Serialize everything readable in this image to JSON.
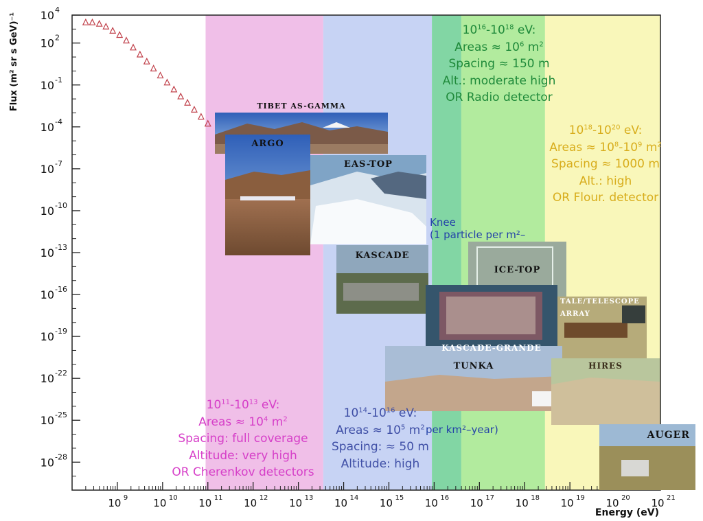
{
  "chart_data": {
    "type": "scatter",
    "xlabel": "Energy (eV)",
    "ylabel": "Flux (m² sr s GeV)⁻¹",
    "x_scale": "log",
    "y_scale": "log",
    "xlim": [
      100000000.0,
      1e+21
    ],
    "ylim": [
      1e-30,
      10000.0
    ],
    "x_ticks": [
      {
        "e": 9,
        "label": "10"
      },
      {
        "e": 10,
        "label": "10"
      },
      {
        "e": 11,
        "label": "10"
      },
      {
        "e": 12,
        "label": "10"
      },
      {
        "e": 13,
        "label": "10"
      },
      {
        "e": 14,
        "label": "10"
      },
      {
        "e": 15,
        "label": "10"
      },
      {
        "e": 16,
        "label": "10"
      },
      {
        "e": 17,
        "label": "10"
      },
      {
        "e": 18,
        "label": "10"
      },
      {
        "e": 19,
        "label": "10"
      },
      {
        "e": 20,
        "label": "10"
      },
      {
        "e": 21,
        "label": "10"
      }
    ],
    "y_ticks": [
      {
        "e": 4,
        "label": "10"
      },
      {
        "e": 2,
        "label": "10"
      },
      {
        "e": -1,
        "label": "10"
      },
      {
        "e": -4,
        "label": "10"
      },
      {
        "e": -7,
        "label": "10"
      },
      {
        "e": -10,
        "label": "10"
      },
      {
        "e": -13,
        "label": "10"
      },
      {
        "e": -16,
        "label": "10"
      },
      {
        "e": -19,
        "label": "10"
      },
      {
        "e": -22,
        "label": "10"
      },
      {
        "e": -25,
        "label": "10"
      },
      {
        "e": -28,
        "label": "10"
      }
    ],
    "series": [
      {
        "marker": "open-triangle",
        "color": "#c0404a",
        "points": [
          [
            200000000.0,
            3162.3
          ],
          [
            280000000.0,
            3162.3
          ],
          [
            400000000.0,
            2511.9
          ],
          [
            560000000.0,
            1584.9
          ],
          [
            790000000.0,
            794.3
          ],
          [
            1120000000.0,
            398.1
          ],
          [
            1580000000.0,
            158.5
          ],
          [
            2240000000.0,
            50.1
          ],
          [
            3160000000.0,
            15.8
          ],
          [
            4470000000.0,
            5.0
          ],
          [
            6310000000.0,
            1.58
          ],
          [
            8910000000.0,
            0.5
          ],
          [
            12600000000.0,
            0.158
          ],
          [
            17800000000.0,
            0.05
          ],
          [
            25100000000.0,
            0.0158
          ],
          [
            35500000000.0,
            0.0056
          ],
          [
            50100000000.0,
            0.00178
          ],
          [
            70800000000.0,
            0.00056
          ],
          [
            100000000000.0,
            0.000178
          ],
          [
            200000000000.0,
            2.5e-05
          ],
          [
            316000000000.0,
            7.9e-06
          ]
        ]
      }
    ],
    "annotations": [
      "Knee",
      "(1 particle per m²–",
      "per km²–year)"
    ],
    "grid": false
  },
  "bands": [
    {
      "id": "band-1011-1013",
      "from": 10.95,
      "to": 13.55,
      "color": "#f0bfe8"
    },
    {
      "id": "band-1014-1016",
      "from": 13.55,
      "to": 15.95,
      "color": "#c7d3f4"
    },
    {
      "id": "band-1016-1017",
      "from": 15.95,
      "to": 16.6,
      "color": "#82d6a4"
    },
    {
      "id": "band-1017-1018",
      "from": 16.6,
      "to": 18.45,
      "color": "#b2eb9e"
    },
    {
      "id": "band-1018-1020",
      "from": 18.45,
      "to": 21.0,
      "color": "#f9f7ba"
    }
  ],
  "experiments": [
    {
      "id": "tibet",
      "label": "TIBET AS-GAMMA"
    },
    {
      "id": "argo",
      "label": "ARGO"
    },
    {
      "id": "eastop",
      "label": "EAS-TOP"
    },
    {
      "id": "kascade",
      "label": "KASCADE"
    },
    {
      "id": "icetop",
      "label": "ICE-TOP"
    },
    {
      "id": "kascadegrande",
      "label": "KASCADE-GRANDE"
    },
    {
      "id": "tale",
      "label": "TALE/TELESCOPE",
      "label2": "ARRAY"
    },
    {
      "id": "tunka",
      "label": "TUNKA"
    },
    {
      "id": "hires",
      "label": "HIRES"
    },
    {
      "id": "auger",
      "label": "AUGER"
    }
  ],
  "info": {
    "b1": {
      "range_a": "10",
      "sup_a": "11",
      "range_b": "-10",
      "sup_b": "13",
      "unit": " eV:",
      "areas": "Areas ≈ 10",
      "areas_sup": "4",
      "areas_unit": " m",
      "areas_sup2": "2",
      "spacing": "Spacing: full coverage",
      "altitude": "Altitude: very high",
      "detector": "OR Cherenkov detectors",
      "color": "#d63fc8"
    },
    "b2": {
      "range_a": "10",
      "sup_a": "14",
      "range_b": "-10",
      "sup_b": "16",
      "unit": " eV:",
      "areas": "Areas ≈ 10",
      "areas_sup": "5",
      "areas_unit": " m",
      "areas_sup2": "2",
      "spacing": "Spacing: ≈ 50 m",
      "altitude": "Altitude: high",
      "color": "#3f4fa6"
    },
    "b3": {
      "range_a": "10",
      "sup_a": "16",
      "range_b": "-10",
      "sup_b": "18",
      "unit": " eV:",
      "areas": "Areas ≈ 10",
      "areas_sup": "6",
      "areas_unit": " m",
      "areas_sup2": "2",
      "spacing": "Spacing ≈ 150 m",
      "altitude": "Alt.: moderate high",
      "detector": "OR Radio detector",
      "color": "#1f8a3a"
    },
    "b4": {
      "range_a": "10",
      "sup_a": "18",
      "range_b": "-10",
      "sup_b": "20",
      "unit": " eV:",
      "areas": "Areas ≈ 10",
      "areas_sup": "8",
      "areas_mid": "-10",
      "areas_sup_b": "9",
      "areas_unit": " m",
      "areas_sup2": "2",
      "spacing": "Spacing ≈ 1000 m",
      "altitude": "Alt.: high",
      "detector": "OR Flour. detector",
      "color": "#d8ad1c"
    }
  }
}
